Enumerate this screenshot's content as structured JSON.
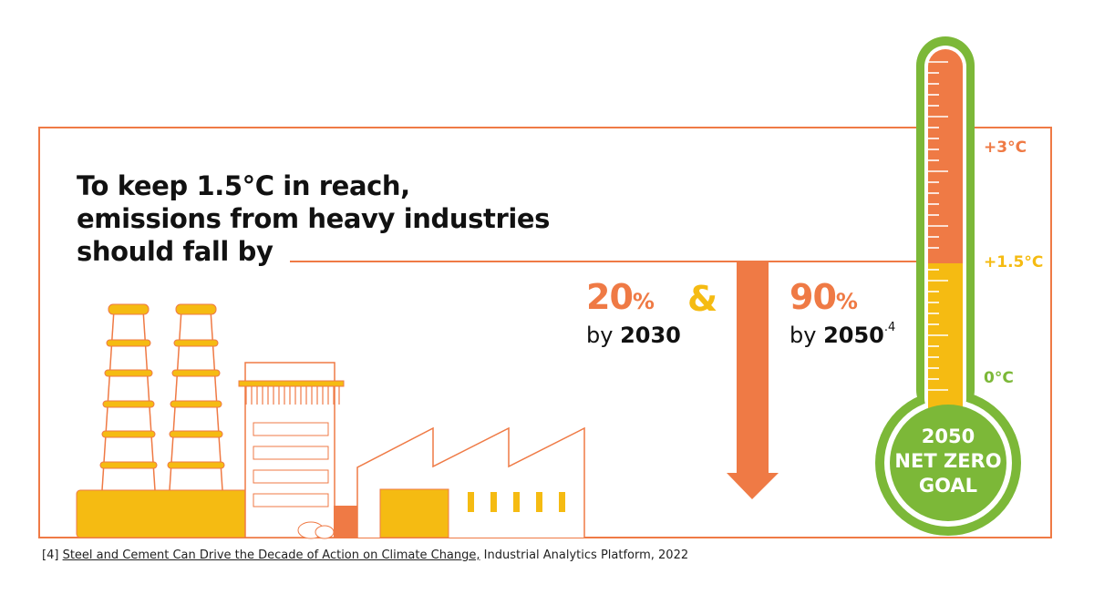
{
  "headline": {
    "line1": "To keep 1.5°C in reach,",
    "line2": "emissions from heavy industries",
    "line3": "should fall by"
  },
  "targets": [
    {
      "percent": "20",
      "sign": "%",
      "prefix": "by ",
      "year": "2030",
      "note": ""
    },
    {
      "percent": "90",
      "sign": "%",
      "prefix": "by ",
      "year": "2050",
      "note": ".4"
    }
  ],
  "ampersand": "&",
  "thermometer": {
    "labels": {
      "high": "+3°C",
      "mid": "+1.5°C",
      "low": "0°C"
    },
    "goal_line1": "2050",
    "goal_line2": "NET ZERO",
    "goal_line3": "GOAL"
  },
  "footnote": {
    "number": "[4]",
    "reference": "Steel and Cement Can Drive the Decade of Action on Climate Change,",
    "source": "Industrial Analytics Platform, 2022"
  },
  "colors": {
    "orange": "#ef7a45",
    "yellow": "#f5bb12",
    "green": "#7cb838",
    "text": "#111111"
  }
}
